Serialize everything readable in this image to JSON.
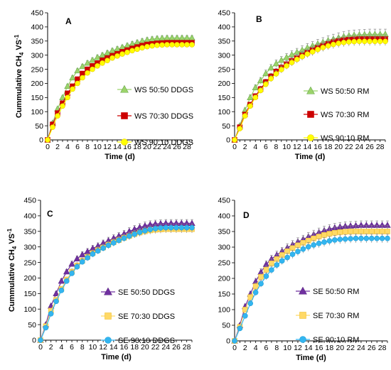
{
  "chart_data": [
    {
      "type": "line",
      "panel_label": "A",
      "ylabel_main": "Cummulative CH",
      "ylabel_sub": "4",
      "ylabel_rest": " VS",
      "ylabel_sup": "-1",
      "xlabel": "Time (d)",
      "xlim": [
        0,
        29
      ],
      "ylim": [
        0,
        450
      ],
      "x_ticks": [
        0,
        2,
        4,
        6,
        8,
        10,
        12,
        14,
        16,
        18,
        20,
        22,
        24,
        26,
        28
      ],
      "y_ticks": [
        0,
        50,
        100,
        150,
        200,
        250,
        300,
        350,
        400,
        450
      ],
      "legend_position": "center-right",
      "x": [
        0,
        1,
        2,
        3,
        4,
        5,
        6,
        7,
        8,
        9,
        10,
        11,
        12,
        13,
        14,
        15,
        16,
        17,
        18,
        19,
        20,
        21,
        22,
        23,
        24,
        25,
        26,
        27,
        28,
        29
      ],
      "series": [
        {
          "name": "WS 50:50 DDGS",
          "marker": "triangle",
          "color": "#9bd36a",
          "edge": "#6aa84f",
          "values": [
            0,
            60,
            110,
            150,
            190,
            220,
            245,
            260,
            272,
            282,
            292,
            300,
            308,
            316,
            322,
            328,
            334,
            340,
            345,
            350,
            354,
            357,
            359,
            360,
            361,
            361,
            361,
            361,
            361,
            361
          ],
          "err": [
            0,
            5,
            6,
            6,
            7,
            7,
            7,
            8,
            8,
            8,
            8,
            8,
            8,
            8,
            8,
            8,
            8,
            8,
            8,
            8,
            8,
            8,
            8,
            8,
            8,
            8,
            8,
            8,
            8,
            8
          ]
        },
        {
          "name": "WS 70:30 DDGS",
          "marker": "square",
          "color": "#cc0000",
          "edge": "#cc0000",
          "values": [
            0,
            55,
            95,
            130,
            165,
            190,
            215,
            235,
            250,
            262,
            272,
            282,
            290,
            298,
            305,
            312,
            318,
            324,
            329,
            334,
            338,
            340,
            342,
            343,
            344,
            344,
            344,
            344,
            344,
            344
          ],
          "err": [
            0,
            5,
            6,
            6,
            7,
            7,
            7,
            8,
            8,
            8,
            8,
            8,
            8,
            8,
            8,
            8,
            8,
            8,
            8,
            8,
            8,
            8,
            8,
            8,
            8,
            8,
            8,
            8,
            8,
            8
          ]
        },
        {
          "name": "WS 90:10 DDGS",
          "marker": "circle",
          "color": "#ffff00",
          "edge": "#e6c800",
          "values": [
            0,
            45,
            85,
            120,
            150,
            180,
            200,
            220,
            237,
            250,
            262,
            272,
            281,
            290,
            297,
            304,
            310,
            316,
            321,
            326,
            330,
            333,
            335,
            336,
            337,
            337,
            337,
            337,
            337,
            337
          ],
          "err": [
            0,
            5,
            6,
            6,
            7,
            7,
            7,
            8,
            8,
            8,
            8,
            8,
            8,
            8,
            8,
            8,
            8,
            8,
            8,
            8,
            8,
            8,
            8,
            8,
            8,
            8,
            8,
            8,
            8,
            8
          ]
        }
      ]
    },
    {
      "type": "line",
      "panel_label": "B",
      "xlabel": "Time (d)",
      "xlim": [
        0,
        29
      ],
      "ylim": [
        0,
        450
      ],
      "x_ticks": [
        0,
        2,
        4,
        6,
        8,
        10,
        12,
        14,
        16,
        18,
        20,
        22,
        24,
        26,
        28
      ],
      "y_ticks": [
        0,
        50,
        100,
        150,
        200,
        250,
        300,
        350,
        400,
        450
      ],
      "legend_position": "center-right",
      "x": [
        0,
        1,
        2,
        3,
        4,
        5,
        6,
        7,
        8,
        9,
        10,
        11,
        12,
        13,
        14,
        15,
        16,
        17,
        18,
        19,
        20,
        21,
        22,
        23,
        24,
        25,
        26,
        27,
        28,
        29
      ],
      "series": [
        {
          "name": "WS 50:50 RM",
          "marker": "triangle",
          "color": "#9bd36a",
          "edge": "#6aa84f",
          "values": [
            0,
            50,
            105,
            150,
            185,
            210,
            235,
            255,
            270,
            282,
            292,
            302,
            310,
            318,
            326,
            333,
            340,
            346,
            352,
            357,
            362,
            366,
            369,
            371,
            372,
            373,
            374,
            374,
            374,
            374
          ],
          "err": [
            0,
            6,
            8,
            9,
            10,
            11,
            12,
            12,
            13,
            13,
            14,
            14,
            14,
            15,
            15,
            15,
            16,
            16,
            16,
            17,
            17,
            17,
            18,
            18,
            18,
            18,
            18,
            18,
            18,
            18
          ]
        },
        {
          "name": "WS 70:30 RM",
          "marker": "square",
          "color": "#cc0000",
          "edge": "#cc0000",
          "values": [
            0,
            45,
            90,
            125,
            155,
            180,
            205,
            225,
            242,
            256,
            268,
            280,
            290,
            300,
            309,
            318,
            326,
            333,
            340,
            346,
            350,
            353,
            355,
            356,
            357,
            357,
            357,
            357,
            357,
            357
          ],
          "err": [
            0,
            6,
            7,
            8,
            9,
            10,
            10,
            11,
            11,
            12,
            12,
            12,
            13,
            13,
            13,
            14,
            14,
            14,
            14,
            15,
            15,
            15,
            15,
            15,
            15,
            15,
            15,
            15,
            15,
            15
          ]
        },
        {
          "name": "WS 90:10 RM",
          "marker": "circle",
          "color": "#ffff00",
          "edge": "#e6c800",
          "values": [
            0,
            40,
            85,
            120,
            150,
            175,
            197,
            217,
            234,
            249,
            262,
            274,
            285,
            295,
            304,
            312,
            320,
            327,
            333,
            338,
            342,
            345,
            347,
            348,
            349,
            349,
            349,
            349,
            349,
            349
          ],
          "err": [
            0,
            6,
            7,
            8,
            9,
            10,
            10,
            11,
            11,
            12,
            12,
            12,
            13,
            13,
            13,
            14,
            14,
            14,
            14,
            15,
            15,
            15,
            15,
            15,
            15,
            15,
            15,
            15,
            15,
            15
          ]
        }
      ]
    },
    {
      "type": "line",
      "panel_label": "C",
      "ylabel_main": "Cummulative CH",
      "ylabel_sub": "4",
      "ylabel_rest": " VS",
      "ylabel_sup": "-1",
      "xlabel": "Time (d)",
      "xlim": [
        0,
        29
      ],
      "ylim": [
        0,
        450
      ],
      "x_ticks": [
        0,
        2,
        4,
        6,
        8,
        10,
        12,
        14,
        16,
        18,
        20,
        22,
        24,
        26,
        28
      ],
      "y_ticks": [
        0,
        50,
        100,
        150,
        200,
        250,
        300,
        350,
        400,
        450
      ],
      "legend_position": "center-right",
      "x": [
        0,
        1,
        2,
        3,
        4,
        5,
        6,
        7,
        8,
        9,
        10,
        11,
        12,
        13,
        14,
        15,
        16,
        17,
        18,
        19,
        20,
        21,
        22,
        23,
        24,
        25,
        26,
        27,
        28,
        29
      ],
      "series": [
        {
          "name": "SE 50:50 DDGS",
          "marker": "triangle",
          "color": "#7030a0",
          "edge": "#5b2683",
          "values": [
            0,
            50,
            110,
            150,
            190,
            220,
            245,
            262,
            275,
            285,
            295,
            303,
            312,
            320,
            328,
            335,
            342,
            350,
            357,
            363,
            368,
            372,
            374,
            375,
            376,
            376,
            376,
            376,
            376,
            376
          ],
          "err": [
            0,
            5,
            6,
            7,
            8,
            8,
            9,
            9,
            9,
            10,
            10,
            10,
            10,
            11,
            11,
            11,
            11,
            12,
            12,
            12,
            12,
            12,
            12,
            12,
            12,
            12,
            12,
            12,
            12,
            12
          ]
        },
        {
          "name": "SE 70:30 DDGS",
          "marker": "square",
          "color": "#ffd966",
          "edge": "#f1c232",
          "values": [
            0,
            45,
            95,
            130,
            165,
            195,
            220,
            240,
            255,
            268,
            280,
            290,
            298,
            307,
            315,
            322,
            329,
            335,
            341,
            346,
            350,
            353,
            355,
            356,
            357,
            357,
            357,
            357,
            357,
            357
          ],
          "err": [
            0,
            5,
            6,
            7,
            8,
            8,
            9,
            9,
            9,
            10,
            10,
            10,
            10,
            11,
            11,
            11,
            11,
            12,
            12,
            12,
            12,
            12,
            12,
            12,
            12,
            12,
            12,
            12,
            12,
            12
          ]
        },
        {
          "name": "SE 90:10 DDGS",
          "marker": "circle",
          "color": "#33b5f0",
          "edge": "#1f9fd6",
          "values": [
            0,
            40,
            85,
            125,
            160,
            190,
            215,
            236,
            252,
            265,
            277,
            287,
            296,
            305,
            313,
            321,
            328,
            335,
            341,
            347,
            352,
            356,
            359,
            361,
            362,
            362,
            362,
            362,
            362,
            362
          ],
          "err": [
            0,
            5,
            6,
            7,
            8,
            8,
            9,
            9,
            9,
            10,
            10,
            10,
            10,
            11,
            11,
            11,
            11,
            12,
            12,
            12,
            12,
            12,
            12,
            12,
            12,
            12,
            12,
            12,
            12,
            12
          ]
        }
      ]
    },
    {
      "type": "line",
      "panel_label": "D",
      "xlabel": "Time (d)",
      "xlim": [
        0,
        29
      ],
      "ylim": [
        0,
        450
      ],
      "x_ticks": [
        0,
        2,
        4,
        6,
        8,
        10,
        12,
        14,
        16,
        18,
        20,
        22,
        24,
        26,
        28
      ],
      "y_ticks": [
        0,
        50,
        100,
        150,
        200,
        250,
        300,
        350,
        400,
        450
      ],
      "legend_position": "center-right",
      "x": [
        0,
        1,
        2,
        3,
        4,
        5,
        6,
        7,
        8,
        9,
        10,
        11,
        12,
        13,
        14,
        15,
        16,
        17,
        18,
        19,
        20,
        21,
        22,
        23,
        24,
        25,
        26,
        27,
        28,
        29
      ],
      "series": [
        {
          "name": "SE 50:50 RM",
          "marker": "triangle",
          "color": "#7030a0",
          "edge": "#5b2683",
          "values": [
            0,
            50,
            110,
            150,
            190,
            220,
            245,
            262,
            275,
            287,
            298,
            308,
            317,
            325,
            333,
            340,
            347,
            353,
            358,
            362,
            365,
            367,
            368,
            369,
            370,
            370,
            370,
            370,
            370,
            370
          ],
          "err": [
            0,
            6,
            8,
            9,
            10,
            11,
            11,
            12,
            12,
            12,
            13,
            13,
            13,
            13,
            14,
            14,
            14,
            14,
            14,
            14,
            14,
            14,
            14,
            14,
            14,
            14,
            14,
            14,
            14,
            14
          ]
        },
        {
          "name": "SE 70:30 RM",
          "marker": "square",
          "color": "#ffd966",
          "edge": "#f1c232",
          "values": [
            0,
            45,
            100,
            140,
            175,
            205,
            228,
            248,
            262,
            275,
            287,
            297,
            306,
            314,
            321,
            328,
            334,
            339,
            343,
            346,
            348,
            349,
            350,
            350,
            350,
            350,
            350,
            350,
            350,
            350
          ],
          "err": [
            0,
            6,
            8,
            10,
            11,
            12,
            13,
            14,
            15,
            16,
            16,
            17,
            17,
            18,
            18,
            18,
            19,
            19,
            19,
            19,
            19,
            19,
            19,
            19,
            19,
            19,
            19,
            19,
            19,
            19
          ]
        },
        {
          "name": "SE 90:10 RM",
          "marker": "circle",
          "color": "#33b5f0",
          "edge": "#1f9fd6",
          "values": [
            0,
            40,
            80,
            120,
            155,
            183,
            207,
            227,
            243,
            256,
            267,
            277,
            286,
            294,
            301,
            307,
            312,
            316,
            320,
            323,
            325,
            326,
            327,
            328,
            328,
            328,
            328,
            328,
            328,
            328
          ],
          "err": [
            0,
            6,
            8,
            9,
            10,
            11,
            11,
            12,
            12,
            12,
            13,
            13,
            13,
            13,
            14,
            14,
            14,
            14,
            14,
            14,
            14,
            14,
            14,
            14,
            14,
            14,
            14,
            14,
            14,
            14
          ]
        }
      ]
    }
  ]
}
